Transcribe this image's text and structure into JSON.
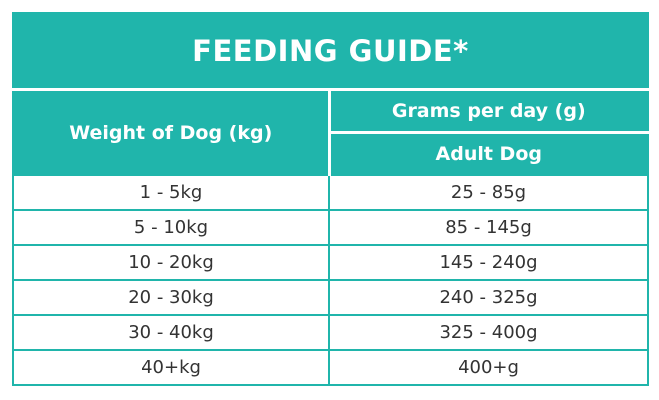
{
  "table": {
    "title": "FEEDING GUIDE*",
    "header": {
      "weight": "Weight of Dog (kg)",
      "grams": "Grams per day (g)",
      "life_stage": "Adult Dog"
    },
    "rows": [
      [
        "1 - 5kg",
        "25 - 85g"
      ],
      [
        "5 - 10kg",
        "85 - 145g"
      ],
      [
        "10 - 20kg",
        "145 - 240g"
      ],
      [
        "20 - 30kg",
        "240 - 325g"
      ],
      [
        "30 - 40kg",
        "325 - 400g"
      ],
      [
        "40+kg",
        "400+g"
      ]
    ]
  }
}
